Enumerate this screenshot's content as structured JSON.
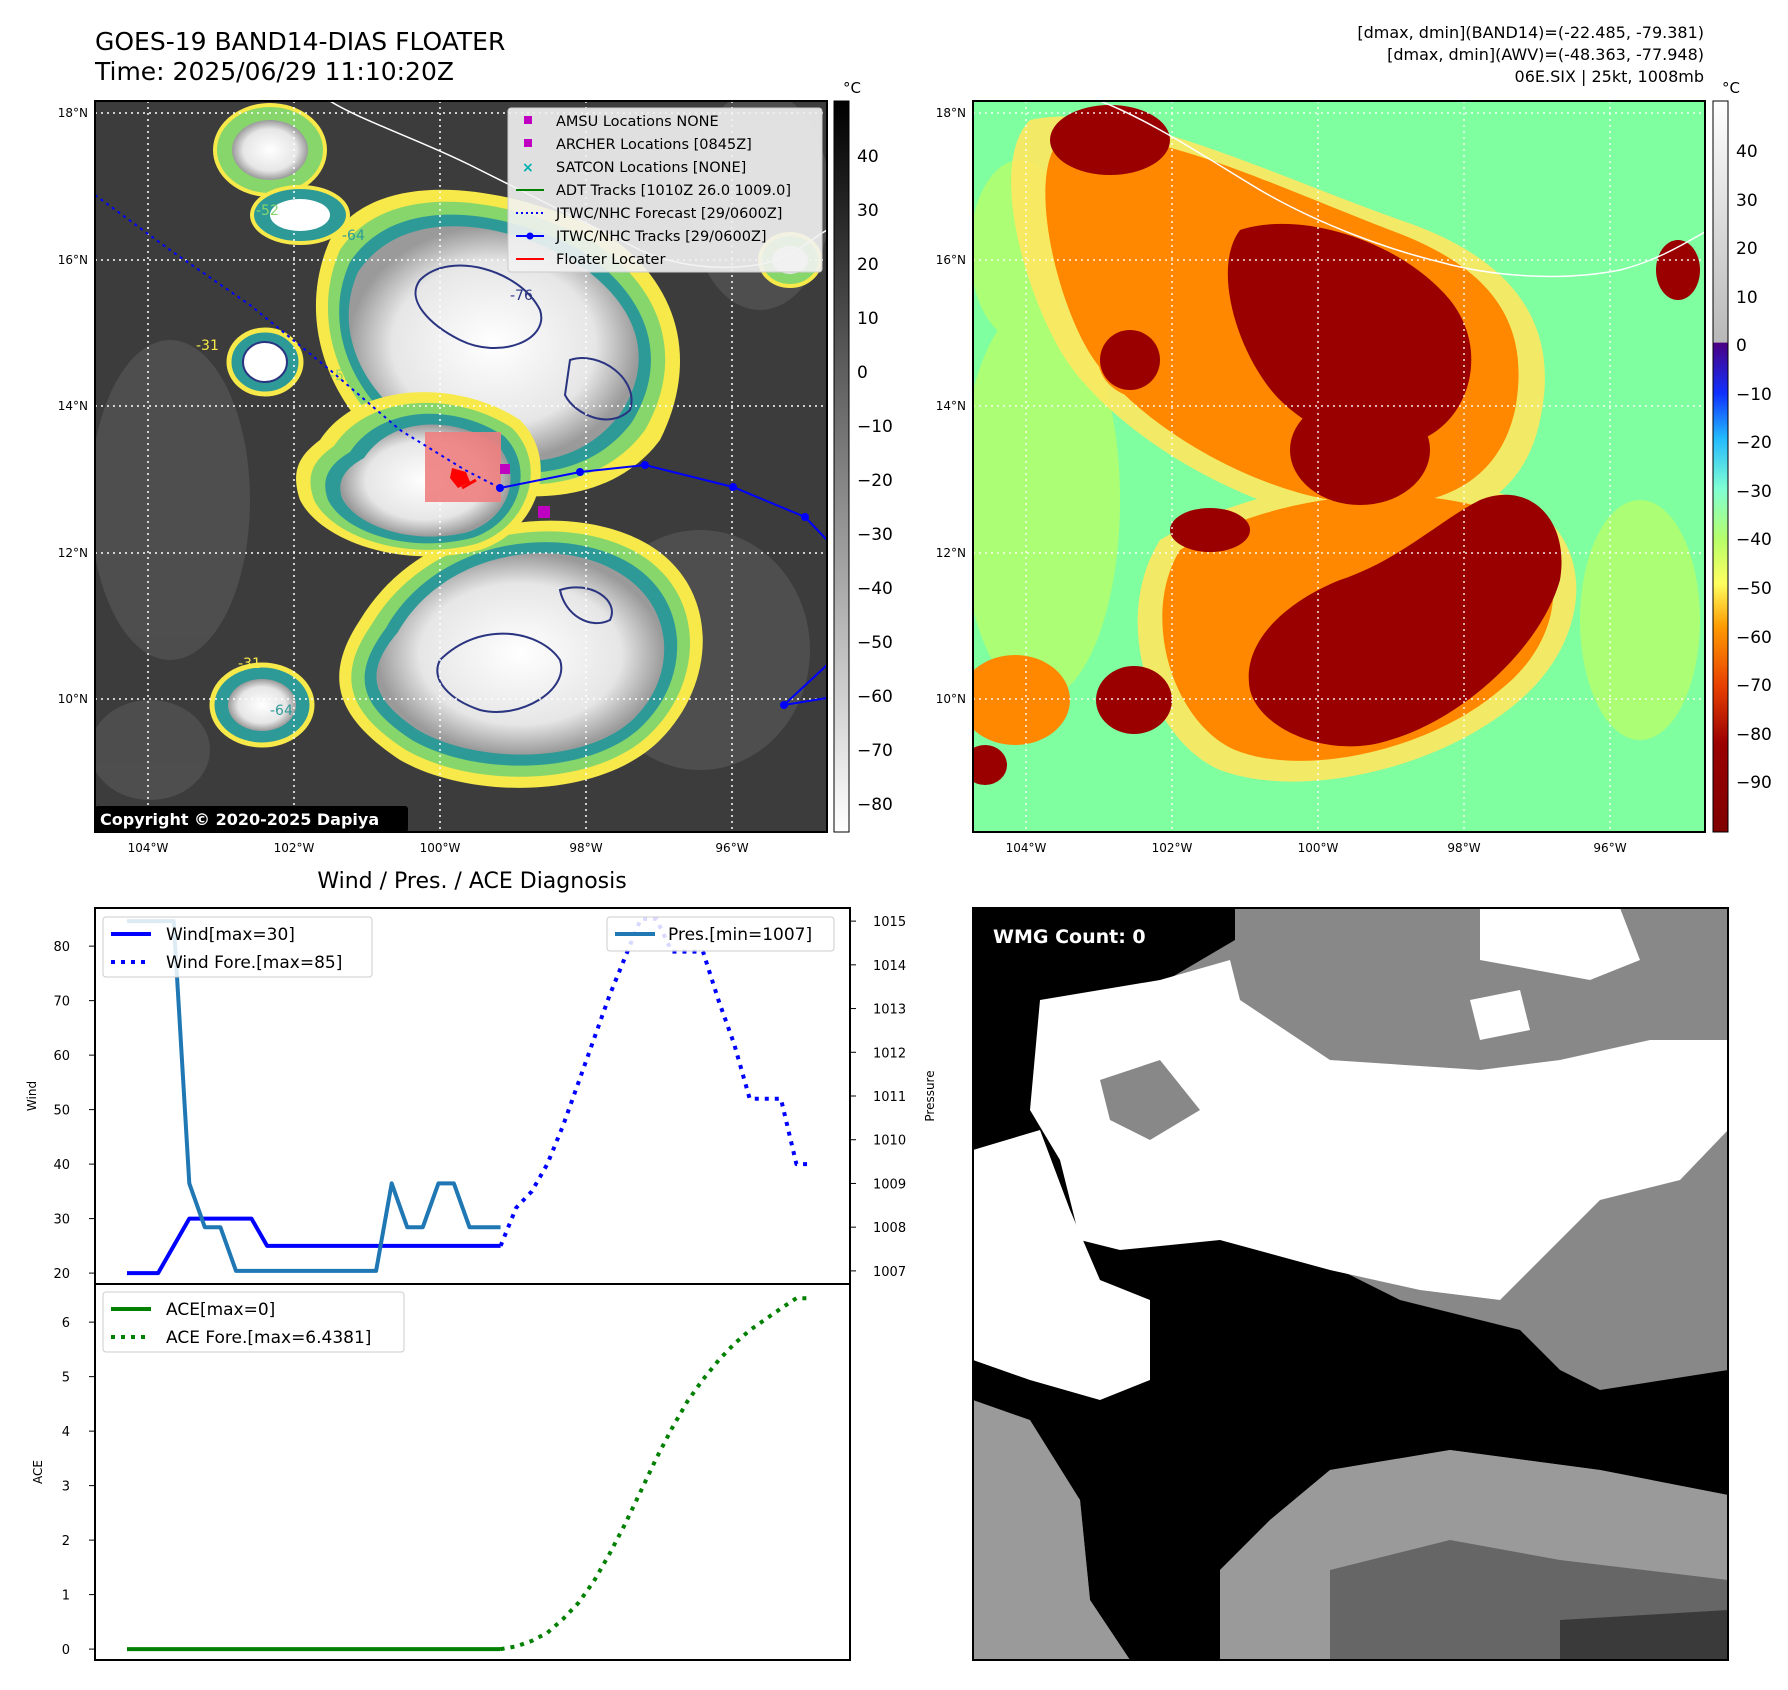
{
  "header": {
    "title": "GOES-19 BAND14-DIAS FLOATER",
    "time": "Time: 2025/06/29 11:10:20Z",
    "info_line1": "[dmax, dmin](BAND14)=(-22.485, -79.381)",
    "info_line2": "[dmax, dmin](AWV)=(-48.363, -77.948)",
    "info_line3": "06E.SIX | 25kt, 1008mb"
  },
  "map": {
    "lat_ticks": [
      "18°N",
      "16°N",
      "14°N",
      "12°N",
      "10°N"
    ],
    "lon_ticks": [
      "104°W",
      "102°W",
      "100°W",
      "98°W",
      "96°W"
    ],
    "copyright": "Copyright © 2020-2025 Dapiya",
    "legend": [
      {
        "label": "AMSU Locations NONE",
        "marker": "square",
        "color": "#c000c0"
      },
      {
        "label": "ARCHER Locations [0845Z]",
        "marker": "square",
        "color": "#c000c0"
      },
      {
        "label": "SATCON Locations [NONE]",
        "marker": "x",
        "color": "#00b0b0"
      },
      {
        "label": "ADT Tracks [1010Z 26.0 1009.0]",
        "marker": "line",
        "color": "#008000"
      },
      {
        "label": "JTWC/NHC Forecast [29/0600Z]",
        "marker": "dotted",
        "color": "#0000ff"
      },
      {
        "label": "JTWC/NHC Tracks [29/0600Z]",
        "marker": "line-dot",
        "color": "#0000ff"
      },
      {
        "label": "Floater Locater",
        "marker": "line",
        "color": "#ff0000"
      }
    ],
    "contour_labels": [
      "-31",
      "-52",
      "-64",
      "-76",
      "-64",
      "-52",
      "-31"
    ]
  },
  "colorbar_left": {
    "unit": "°C",
    "ticks": [
      "40",
      "30",
      "20",
      "10",
      "0",
      "−10",
      "−20",
      "−30",
      "−40",
      "−50",
      "−60",
      "−70",
      "−80"
    ]
  },
  "colorbar_right": {
    "unit": "°C",
    "ticks": [
      "40",
      "30",
      "20",
      "10",
      "0",
      "−10",
      "−20",
      "−30",
      "−40",
      "−50",
      "−60",
      "−70",
      "−80",
      "−90"
    ]
  },
  "diagnosis": {
    "title": "Wind / Pres. / ACE Diagnosis",
    "wind_ylabel": "Wind",
    "pres_ylabel": "Pressure",
    "ace_ylabel": "ACE",
    "legend_wind": "Wind[max=30]",
    "legend_wind_fore": "Wind Fore.[max=85]",
    "legend_pres": "Pres.[min=1007]",
    "legend_ace": "ACE[max=0]",
    "legend_ace_fore": "ACE Fore.[max=6.4381]"
  },
  "wmg": {
    "label": "WMG Count: 0"
  },
  "chart_data": [
    {
      "type": "line",
      "name": "wind",
      "ylim": [
        18,
        87
      ],
      "yticks": [
        20,
        30,
        40,
        50,
        60,
        70,
        80
      ],
      "series": [
        {
          "name": "Wind[max=30]",
          "style": "solid",
          "color": "#0000ff",
          "x": [
            0,
            1,
            2,
            3,
            4,
            5,
            6,
            7,
            8,
            9,
            10,
            11,
            12,
            13,
            14,
            15,
            16,
            17,
            18,
            19,
            20,
            21,
            22,
            23,
            24
          ],
          "y": [
            20,
            20,
            20,
            25,
            30,
            30,
            30,
            30,
            30,
            25,
            25,
            25,
            25,
            25,
            25,
            25,
            25,
            25,
            25,
            25,
            25,
            25,
            25,
            25,
            25
          ]
        },
        {
          "name": "Wind Fore.[max=85]",
          "style": "dotted",
          "color": "#0000ff",
          "x": [
            24,
            25,
            26,
            27,
            28,
            29,
            30,
            31,
            32,
            33,
            34,
            35,
            36,
            37,
            38,
            39,
            40,
            41,
            42,
            43,
            44
          ],
          "y": [
            25,
            32,
            35,
            40,
            47,
            55,
            63,
            71,
            78,
            85,
            85,
            79,
            79,
            79,
            70,
            62,
            52,
            52,
            52,
            40,
            40
          ]
        }
      ]
    },
    {
      "type": "line",
      "name": "pressure",
      "ylim": [
        1006.7,
        1015.3
      ],
      "yticks": [
        1007,
        1008,
        1009,
        1010,
        1011,
        1012,
        1013,
        1014,
        1015
      ],
      "series": [
        {
          "name": "Pres.[min=1007]",
          "style": "solid",
          "color": "#1f77b4",
          "x": [
            0,
            1,
            2,
            3,
            4,
            5,
            6,
            7,
            8,
            9,
            10,
            11,
            12,
            13,
            14,
            15,
            16,
            17,
            18,
            19,
            20,
            21,
            22,
            23,
            24
          ],
          "y": [
            1015,
            1015,
            1015,
            1015,
            1009,
            1008,
            1008,
            1007,
            1007,
            1007,
            1007,
            1007,
            1007,
            1007,
            1007,
            1007,
            1007,
            1009,
            1008,
            1008,
            1009,
            1009,
            1008,
            1008,
            1008
          ]
        }
      ]
    },
    {
      "type": "line",
      "name": "ace",
      "ylim": [
        -0.2,
        6.7
      ],
      "yticks": [
        0,
        1,
        2,
        3,
        4,
        5,
        6
      ],
      "series": [
        {
          "name": "ACE[max=0]",
          "style": "solid",
          "color": "#008000",
          "x": [
            0,
            2,
            4,
            6,
            8,
            10,
            12,
            14,
            16,
            18,
            20,
            22,
            24
          ],
          "y": [
            0,
            0,
            0,
            0,
            0,
            0,
            0,
            0,
            0,
            0,
            0,
            0,
            0
          ]
        },
        {
          "name": "ACE Fore.[max=6.4381]",
          "style": "dotted",
          "color": "#008000",
          "x": [
            24,
            25,
            26,
            27,
            28,
            29,
            30,
            31,
            32,
            33,
            34,
            35,
            36,
            37,
            38,
            39,
            40,
            41,
            42,
            43,
            44
          ],
          "y": [
            0,
            0.05,
            0.15,
            0.3,
            0.55,
            0.85,
            1.25,
            1.75,
            2.3,
            2.9,
            3.5,
            4.05,
            4.55,
            4.95,
            5.3,
            5.6,
            5.85,
            6.05,
            6.25,
            6.44,
            6.44
          ]
        }
      ]
    }
  ]
}
